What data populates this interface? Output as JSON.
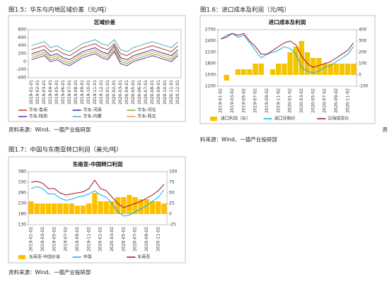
{
  "captions": [
    "图1.5：华东与内地区域价差（元/吨）",
    "图1.6：进口成本及利润（元/吨）",
    "图1.7：中国与东南亚转口利润（美元/吨）"
  ],
  "sources": [
    "资料来源：Wind、一德产业投研部",
    "资",
    "料来源：Wind、一德产业投研部",
    "资料来源：Wind、一德产业投研部"
  ],
  "chart_data": [
    {
      "type": "line",
      "title": "区域价差",
      "categories": [
        "2019-01-01",
        "2019-02-01",
        "2019-03-01",
        "2019-04-01",
        "2019-05-01",
        "2019-06-01",
        "2019-07-01",
        "2019-08-01",
        "2019-09-01",
        "2019-10-01",
        "2019-11-01",
        "2019-12-01",
        "2020-01-01",
        "2020-02-01",
        "2020-03-01",
        "2020-04-01",
        "2020-05-01",
        "2020-06-01",
        "2020-07-01",
        "2020-08-01",
        "2020-09-01",
        "2020-10-01",
        "2020-11-01",
        "2020-12-01"
      ],
      "ylim": [
        -400,
        800
      ],
      "yticks": [
        -400,
        -200,
        0,
        200,
        400,
        600,
        800
      ],
      "grid": false,
      "series": [
        {
          "name": "华东-鲁南",
          "color": "#c0392b",
          "type": "line",
          "values": [
            300,
            350,
            400,
            250,
            300,
            200,
            150,
            250,
            350,
            400,
            450,
            350,
            300,
            450,
            200,
            150,
            250,
            300,
            350,
            400,
            350,
            300,
            250,
            400
          ]
        },
        {
          "name": "华东-河南",
          "color": "#1f3a93",
          "type": "line",
          "values": [
            200,
            250,
            300,
            150,
            200,
            100,
            50,
            150,
            250,
            300,
            350,
            250,
            200,
            400,
            100,
            50,
            150,
            200,
            250,
            300,
            250,
            200,
            150,
            300
          ]
        },
        {
          "name": "华东-河北",
          "color": "#70ad47",
          "type": "line",
          "values": [
            100,
            150,
            200,
            50,
            100,
            0,
            -50,
            50,
            150,
            200,
            250,
            150,
            100,
            300,
            0,
            -50,
            50,
            100,
            150,
            200,
            150,
            100,
            50,
            200
          ]
        },
        {
          "name": "华东-陕西",
          "color": "#7030a0",
          "type": "line",
          "values": [
            50,
            100,
            150,
            0,
            50,
            -50,
            -100,
            0,
            100,
            150,
            200,
            100,
            50,
            250,
            -50,
            -100,
            0,
            50,
            100,
            150,
            100,
            50,
            0,
            150
          ]
        },
        {
          "name": "华东-内蒙",
          "color": "#4bacc6",
          "type": "line",
          "values": [
            400,
            450,
            500,
            350,
            400,
            300,
            250,
            350,
            450,
            500,
            550,
            450,
            400,
            550,
            300,
            250,
            350,
            400,
            450,
            500,
            450,
            400,
            350,
            500
          ]
        },
        {
          "name": "华东-西北",
          "color": "#f79646",
          "type": "line",
          "values": [
            150,
            200,
            250,
            100,
            150,
            50,
            0,
            100,
            200,
            250,
            300,
            200,
            150,
            350,
            50,
            0,
            100,
            150,
            200,
            250,
            200,
            150,
            100,
            250
          ]
        }
      ]
    },
    {
      "type": "combo",
      "title": "进口成本及利润",
      "categories": [
        "2019-01-02",
        null,
        "2019-03-02",
        null,
        "2019-05-02",
        null,
        "2019-07-02",
        null,
        "2019-09-02",
        null,
        "2019-11-02",
        null,
        "2020-01-02",
        null,
        "2020-03-02",
        null,
        "2020-05-02",
        null,
        "2020-07-02",
        null,
        "2020-09-02",
        null,
        "2020-11-02",
        null
      ],
      "ylim": [
        1200,
        2700
      ],
      "yticks": [
        1200,
        1500,
        1800,
        2100,
        2400,
        2700
      ],
      "y2lim": [
        -100,
        400
      ],
      "y2ticks": [
        -100,
        0,
        100,
        200,
        300,
        400
      ],
      "grid": false,
      "series": [
        {
          "name": "进口利润（右）",
          "color": "#f5c400",
          "type": "bar",
          "axis": "y2",
          "values": [
            0,
            -50,
            0,
            50,
            50,
            50,
            100,
            100,
            0,
            50,
            100,
            100,
            200,
            250,
            300,
            200,
            150,
            150,
            100,
            100,
            100,
            100,
            100,
            100
          ]
        },
        {
          "name": "进口完税价",
          "color": "#00b0f0",
          "type": "line",
          "values": [
            2450,
            2550,
            2600,
            2500,
            2550,
            2350,
            2150,
            1950,
            2050,
            2100,
            2150,
            2250,
            2200,
            2050,
            1700,
            1600,
            1550,
            1600,
            1700,
            1750,
            1850,
            1950,
            2050,
            2250
          ]
        },
        {
          "name": "沿海现货价",
          "color": "#a50f15",
          "type": "line",
          "values": [
            2450,
            2500,
            2600,
            2550,
            2600,
            2400,
            2250,
            2050,
            2050,
            2150,
            2250,
            2350,
            2400,
            2300,
            2000,
            1800,
            1700,
            1750,
            1800,
            1850,
            1950,
            2050,
            2150,
            2350
          ]
        }
      ]
    },
    {
      "type": "combo",
      "title": "东南亚-中国转口利润",
      "categories": [
        "2019-01-02",
        null,
        "2019-03-02",
        null,
        "2019-05-02",
        null,
        "2019-07-02",
        null,
        "2019-09-02",
        null,
        "2019-11-02",
        null,
        "2020-01-02",
        null,
        "2020-03-02",
        null,
        "2020-05-02",
        null,
        "2020-07-02",
        null,
        "2020-09-02",
        null,
        "2020-11-02",
        null
      ],
      "ylim": [
        130,
        380
      ],
      "yticks": [
        130,
        180,
        230,
        280,
        330,
        380
      ],
      "y2lim": [
        -25,
        100
      ],
      "y2ticks": [
        -25,
        0,
        25,
        50,
        75,
        100
      ],
      "grid": false,
      "series": [
        {
          "name": "东南亚-中国价差",
          "color": "#ffc000",
          "type": "bar",
          "axis": "y2",
          "values": [
            30,
            25,
            25,
            25,
            25,
            25,
            25,
            25,
            20,
            20,
            25,
            50,
            30,
            30,
            30,
            40,
            40,
            45,
            40,
            35,
            35,
            30,
            30,
            25
          ]
        },
        {
          "name": "中国",
          "color": "#00b0f0",
          "type": "line",
          "values": [
            300,
            310,
            300,
            275,
            275,
            255,
            245,
            250,
            260,
            265,
            275,
            290,
            270,
            260,
            230,
            190,
            170,
            175,
            190,
            205,
            220,
            240,
            260,
            295
          ]
        },
        {
          "name": "东南亚",
          "color": "#a50f15",
          "type": "line",
          "values": [
            330,
            335,
            325,
            300,
            300,
            280,
            270,
            275,
            280,
            285,
            300,
            340,
            300,
            290,
            260,
            230,
            210,
            220,
            230,
            240,
            255,
            270,
            290,
            320
          ]
        }
      ]
    }
  ]
}
